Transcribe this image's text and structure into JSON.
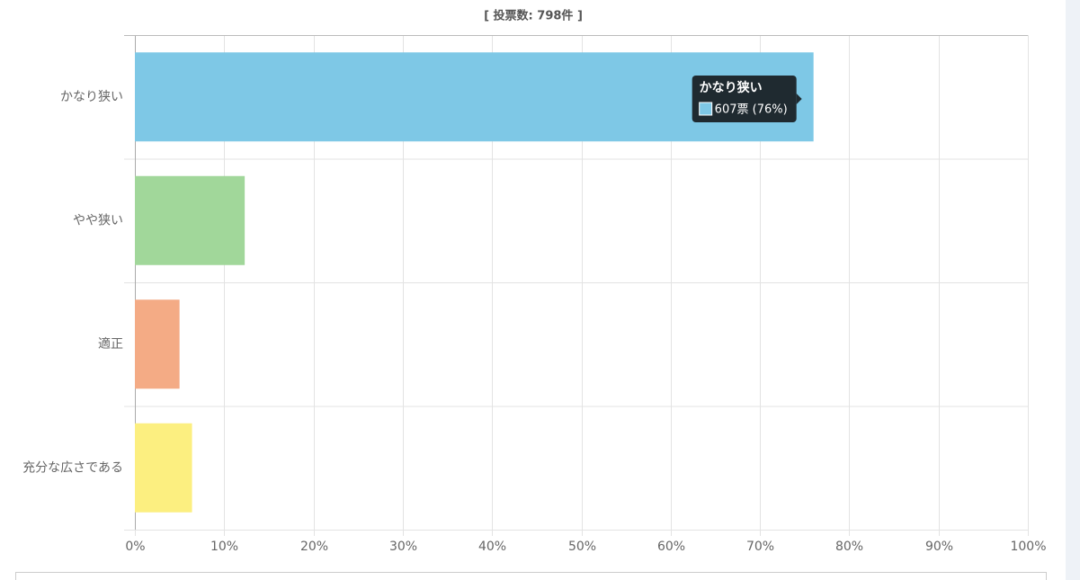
{
  "chart_data": {
    "type": "barh",
    "title": "[ 投票数: 798件 ]",
    "categories": [
      "かなり狭い",
      "やや狭い",
      "適正",
      "充分な広さである"
    ],
    "values": [
      76.0,
      12.3,
      5.0,
      6.4
    ],
    "colors": [
      "#7ec8e6",
      "#a1d79a",
      "#f4ab85",
      "#fcef80"
    ],
    "xlim": [
      0,
      100
    ],
    "xticks": [
      {
        "value": 0,
        "label": "0%"
      },
      {
        "value": 10,
        "label": "10%"
      },
      {
        "value": 20,
        "label": "20%"
      },
      {
        "value": 30,
        "label": "30%"
      },
      {
        "value": 40,
        "label": "40%"
      },
      {
        "value": 50,
        "label": "50%"
      },
      {
        "value": 60,
        "label": "60%"
      },
      {
        "value": 70,
        "label": "70%"
      },
      {
        "value": 80,
        "label": "80%"
      },
      {
        "value": 90,
        "label": "90%"
      },
      {
        "value": 100,
        "label": "100%"
      }
    ],
    "grid": true,
    "tooltip": "607票 (76%)"
  }
}
